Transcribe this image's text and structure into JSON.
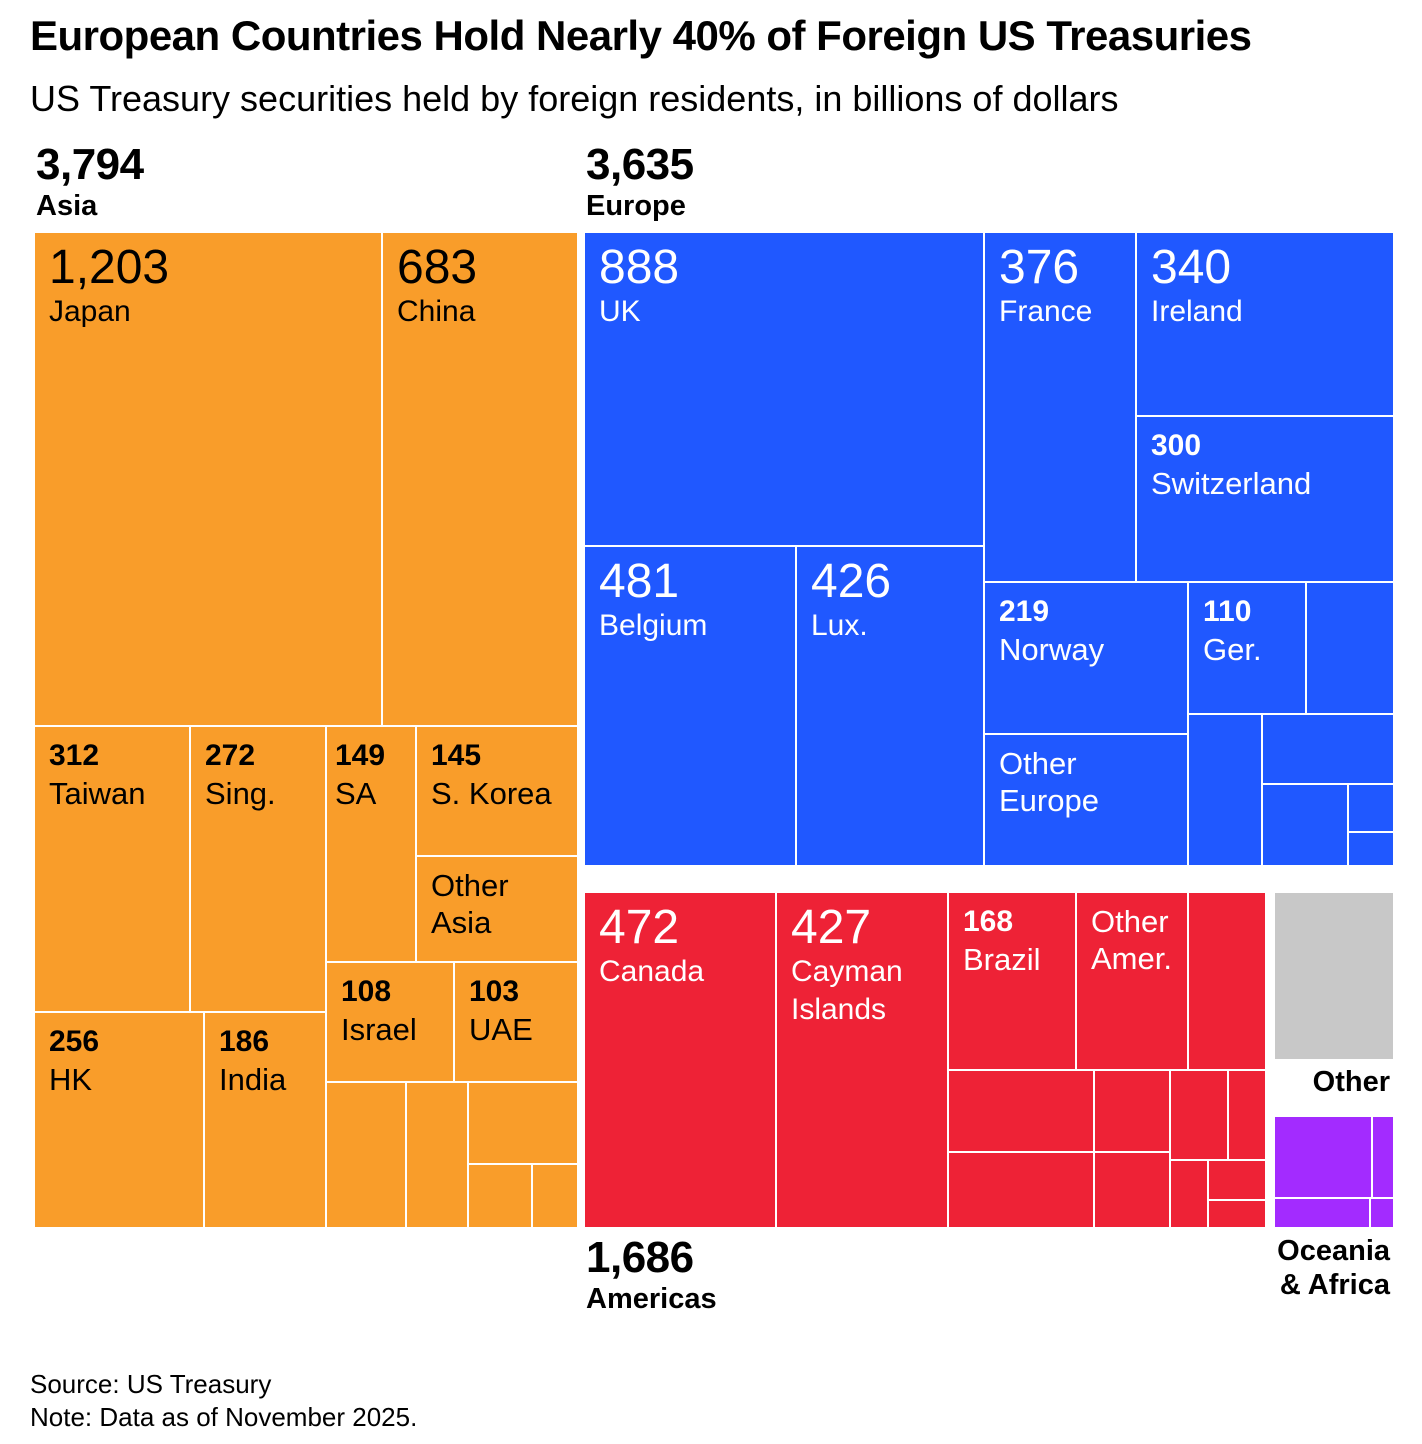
{
  "header": {
    "title": "European Countries Hold Nearly 40% of Foreign US Treasuries",
    "subtitle": "US Treasury securities held by foreign residents, in billions of dollars"
  },
  "groups": {
    "asia": {
      "total": "3,794",
      "name": "Asia",
      "color": "#F99D2A"
    },
    "europe": {
      "total": "3,635",
      "name": "Europe",
      "color": "#2058FF"
    },
    "americas": {
      "total": "1,686",
      "name": "Americas",
      "color": "#EE2236"
    },
    "other": {
      "name": "Other",
      "color": "#C8C8C8"
    },
    "oceania_africa": {
      "name": "Oceania & Africa",
      "name_line1": "Oceania",
      "name_line2": "& Africa",
      "color": "#A32BFF"
    }
  },
  "chart_data": {
    "type": "treemap",
    "title": "European Countries Hold Nearly 40% of Foreign US Treasuries",
    "subtitle": "US Treasury securities held by foreign residents, in billions of dollars",
    "unit": "billions of US dollars",
    "groups": [
      {
        "name": "Asia",
        "total": 3794,
        "items": [
          {
            "name": "Japan",
            "value": 1203
          },
          {
            "name": "China",
            "value": 683
          },
          {
            "name": "Taiwan",
            "value": 312
          },
          {
            "name": "Sing.",
            "value": 272
          },
          {
            "name": "HK",
            "value": 256
          },
          {
            "name": "India",
            "value": 186
          },
          {
            "name": "SA",
            "value": 149
          },
          {
            "name": "S. Korea",
            "value": 145
          },
          {
            "name": "Israel",
            "value": 108
          },
          {
            "name": "UAE",
            "value": 103
          },
          {
            "name": "Other Asia",
            "value": null
          }
        ]
      },
      {
        "name": "Europe",
        "total": 3635,
        "items": [
          {
            "name": "UK",
            "value": 888
          },
          {
            "name": "Belgium",
            "value": 481
          },
          {
            "name": "Lux.",
            "value": 426
          },
          {
            "name": "France",
            "value": 376
          },
          {
            "name": "Ireland",
            "value": 340
          },
          {
            "name": "Switzerland",
            "value": 300
          },
          {
            "name": "Norway",
            "value": 219
          },
          {
            "name": "Ger.",
            "value": 110
          },
          {
            "name": "Other Europe",
            "value": null
          }
        ]
      },
      {
        "name": "Americas",
        "total": 1686,
        "items": [
          {
            "name": "Canada",
            "value": 472
          },
          {
            "name": "Cayman Islands",
            "value": 427
          },
          {
            "name": "Brazil",
            "value": 168
          },
          {
            "name": "Other Amer.",
            "value": null
          }
        ]
      },
      {
        "name": "Other",
        "total": null,
        "items": []
      },
      {
        "name": "Oceania & Africa",
        "total": null,
        "items": []
      }
    ]
  },
  "tiles": {
    "japan": {
      "value": "1,203",
      "name": "Japan"
    },
    "china": {
      "value": "683",
      "name": "China"
    },
    "taiwan": {
      "value": "312",
      "name": "Taiwan"
    },
    "sing": {
      "value": "272",
      "name": "Sing."
    },
    "sa": {
      "value": "149",
      "name": "SA"
    },
    "skorea": {
      "value": "145",
      "name": "S. Korea"
    },
    "other_asia": {
      "line1": "Other",
      "line2": "Asia"
    },
    "hk": {
      "value": "256",
      "name": "HK"
    },
    "india": {
      "value": "186",
      "name": "India"
    },
    "israel": {
      "value": "108",
      "name": "Israel"
    },
    "uae": {
      "value": "103",
      "name": "UAE"
    },
    "uk": {
      "value": "888",
      "name": "UK"
    },
    "france": {
      "value": "376",
      "name": "France"
    },
    "ireland": {
      "value": "340",
      "name": "Ireland"
    },
    "switzerland": {
      "value": "300",
      "name": "Switzerland"
    },
    "belgium": {
      "value": "481",
      "name": "Belgium"
    },
    "lux": {
      "value": "426",
      "name": "Lux."
    },
    "norway": {
      "value": "219",
      "name": "Norway"
    },
    "ger": {
      "value": "110",
      "name": "Ger."
    },
    "other_europe": {
      "line1": "Other",
      "line2": "Europe"
    },
    "canada": {
      "value": "472",
      "name": "Canada"
    },
    "cayman": {
      "value": "427",
      "name_line1": "Cayman",
      "name_line2": "Islands"
    },
    "brazil": {
      "value": "168",
      "name": "Brazil"
    },
    "other_amer": {
      "line1": "Other",
      "line2": "Amer."
    }
  },
  "footer": {
    "source": "Source: US Treasury",
    "note": "Note: Data as of November 2025."
  }
}
